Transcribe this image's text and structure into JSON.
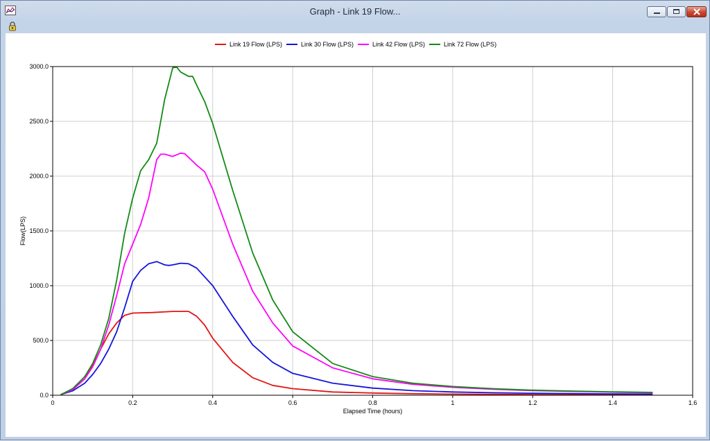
{
  "window": {
    "title": "Graph - Link 19 Flow..."
  },
  "icons": {
    "app": "graph-app-icon",
    "lock": "lock-icon",
    "minimize": "minimize-icon",
    "maximize": "restore-icon",
    "close": "close-icon"
  },
  "chart_data": {
    "type": "line",
    "title": "",
    "xlabel": "Elapsed Time (hours)",
    "ylabel": "Flow(LPS)",
    "xlim": [
      0,
      1.6
    ],
    "ylim": [
      0,
      3000
    ],
    "xticks": [
      0,
      0.2,
      0.4,
      0.6,
      0.8,
      1,
      1.2,
      1.4,
      1.6
    ],
    "xtick_labels": [
      "0",
      "0.2",
      "0.4",
      "0.6",
      "0.8",
      "1",
      "1.2",
      "1.4",
      "1.6"
    ],
    "yticks": [
      0,
      500,
      1000,
      1500,
      2000,
      2500,
      3000
    ],
    "ytick_labels": [
      "0.0",
      "500.0",
      "1000.0",
      "1500.0",
      "2000.0",
      "2500.0",
      "3000.0"
    ],
    "grid": true,
    "legend_position": "top",
    "series": [
      {
        "name": "Link 19 Flow (LPS)",
        "color": "#e41414",
        "x": [
          0.02,
          0.05,
          0.08,
          0.1,
          0.12,
          0.14,
          0.16,
          0.18,
          0.2,
          0.25,
          0.3,
          0.34,
          0.36,
          0.38,
          0.4,
          0.45,
          0.5,
          0.55,
          0.6,
          0.7,
          0.8,
          0.9,
          1.0,
          1.1,
          1.2,
          1.3,
          1.4,
          1.5
        ],
        "y": [
          5,
          50,
          150,
          270,
          420,
          560,
          660,
          730,
          750,
          755,
          765,
          765,
          720,
          640,
          520,
          300,
          160,
          90,
          60,
          30,
          20,
          14,
          10,
          8,
          6,
          5,
          4,
          3
        ]
      },
      {
        "name": "Link 30 Flow (LPS)",
        "color": "#1414dc",
        "x": [
          0.02,
          0.05,
          0.08,
          0.1,
          0.12,
          0.14,
          0.16,
          0.18,
          0.2,
          0.22,
          0.24,
          0.26,
          0.28,
          0.29,
          0.3,
          0.32,
          0.34,
          0.36,
          0.4,
          0.45,
          0.5,
          0.55,
          0.6,
          0.7,
          0.8,
          0.9,
          1.0,
          1.1,
          1.2,
          1.3,
          1.4,
          1.5
        ],
        "y": [
          5,
          40,
          110,
          190,
          290,
          420,
          580,
          800,
          1040,
          1140,
          1200,
          1220,
          1190,
          1185,
          1190,
          1205,
          1200,
          1160,
          1000,
          720,
          460,
          300,
          200,
          110,
          65,
          42,
          30,
          23,
          18,
          15,
          12,
          10
        ]
      },
      {
        "name": "Link 42 Flow (LPS)",
        "color": "#ff00ff",
        "x": [
          0.02,
          0.05,
          0.08,
          0.1,
          0.12,
          0.14,
          0.16,
          0.18,
          0.2,
          0.22,
          0.24,
          0.26,
          0.27,
          0.28,
          0.3,
          0.32,
          0.33,
          0.34,
          0.36,
          0.38,
          0.4,
          0.45,
          0.5,
          0.55,
          0.6,
          0.7,
          0.8,
          0.9,
          1.0,
          1.1,
          1.2,
          1.3,
          1.4,
          1.5
        ],
        "y": [
          5,
          50,
          150,
          260,
          420,
          640,
          910,
          1200,
          1380,
          1560,
          1800,
          2150,
          2200,
          2200,
          2180,
          2210,
          2205,
          2170,
          2100,
          2040,
          1880,
          1380,
          950,
          660,
          450,
          250,
          150,
          100,
          72,
          55,
          42,
          35,
          28,
          22
        ]
      },
      {
        "name": "Link 72 Flow (LPS)",
        "color": "#138a13",
        "x": [
          0.02,
          0.05,
          0.08,
          0.1,
          0.12,
          0.14,
          0.16,
          0.18,
          0.2,
          0.22,
          0.24,
          0.26,
          0.28,
          0.3,
          0.31,
          0.32,
          0.34,
          0.35,
          0.36,
          0.38,
          0.4,
          0.45,
          0.5,
          0.55,
          0.6,
          0.7,
          0.8,
          0.9,
          1.0,
          1.1,
          1.2,
          1.3,
          1.4,
          1.5
        ],
        "y": [
          5,
          60,
          170,
          290,
          460,
          700,
          1050,
          1480,
          1800,
          2050,
          2150,
          2300,
          2700,
          2990,
          2995,
          2950,
          2910,
          2910,
          2830,
          2680,
          2480,
          1870,
          1300,
          870,
          580,
          290,
          170,
          110,
          80,
          60,
          46,
          38,
          31,
          26
        ]
      }
    ]
  }
}
